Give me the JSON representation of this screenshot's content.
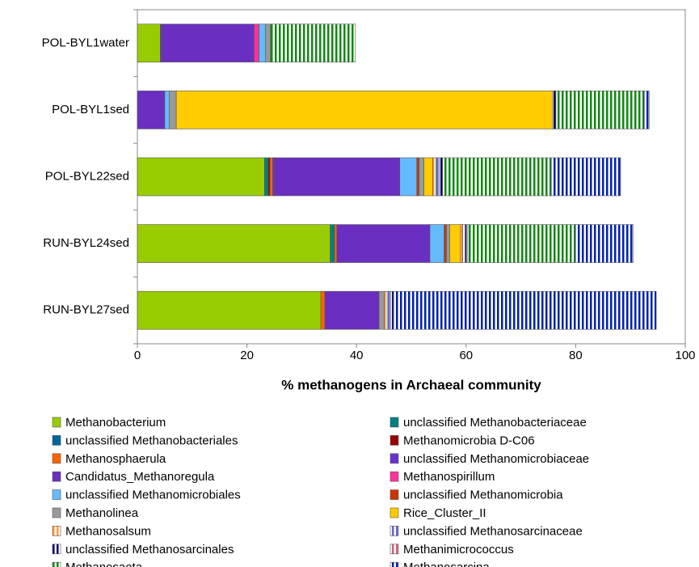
{
  "chart_data": {
    "type": "stacked-barh",
    "xlabel": "% methanogens in Archaeal community",
    "categories": [
      "POL-BYL1water",
      "POL-BYL1sed",
      "POL-BYL22sed",
      "RUN-BYL24sed",
      "RUN-BYL27sed"
    ],
    "xlim": [
      0,
      100
    ],
    "xticks": [
      0,
      20,
      40,
      60,
      80,
      100
    ],
    "series": [
      {
        "name": "Methanobacterium",
        "color": "#99cc00",
        "values": [
          4.2,
          0,
          23.2,
          35.2,
          33.5
        ]
      },
      {
        "name": "unclassified Methanobacteriaceae",
        "color": "#008080",
        "values": [
          0,
          0,
          0.7,
          0.8,
          0
        ]
      },
      {
        "name": "unclassified Methanobacteriales",
        "color": "#006699",
        "values": [
          0,
          0,
          0,
          0,
          0
        ]
      },
      {
        "name": "Methanomicrobia D-C06",
        "color": "#990000",
        "values": [
          0,
          0,
          0.3,
          0,
          0
        ]
      },
      {
        "name": "Methanosphaerula",
        "color": "#ff6600",
        "values": [
          0,
          0,
          0.5,
          0.4,
          0.7
        ]
      },
      {
        "name": "unclassified Methanomicrobiaceae",
        "color": "#6633cc",
        "values": [
          0.3,
          0,
          0.3,
          0,
          0
        ]
      },
      {
        "name": "Candidatus_Methanoregula",
        "color": "#6a2fc0",
        "values": [
          16.8,
          5.0,
          22.9,
          17.0,
          9.9
        ]
      },
      {
        "name": "Methanospirillum",
        "color": "#ff3399",
        "values": [
          0.9,
          0,
          0,
          0,
          0
        ]
      },
      {
        "name": "unclassified Methanomicrobiales",
        "color": "#66bbff",
        "values": [
          1.2,
          0.8,
          3.1,
          2.6,
          0
        ]
      },
      {
        "name": "unclassified Methanomicrobia",
        "color": "#cc3300",
        "values": [
          0,
          0,
          0.4,
          0.4,
          0
        ]
      },
      {
        "name": "Methanolinea",
        "color": "#999999",
        "values": [
          0.9,
          1.3,
          0.9,
          0.6,
          1.0
        ]
      },
      {
        "name": "Rice_Cluster_II",
        "color": "#ffcc00",
        "values": [
          0,
          68.7,
          1.6,
          1.9,
          0
        ]
      },
      {
        "name": "Methanosalsum",
        "color": "#ff9933",
        "pattern": "stripes",
        "values": [
          0,
          0,
          0.6,
          0.5,
          0.5
        ]
      },
      {
        "name": "unclassified Methanosarcinaceae",
        "color": "#6666cc",
        "pattern": "stripes",
        "values": [
          0,
          0,
          0.6,
          0.5,
          0.6
        ]
      },
      {
        "name": "unclassified Methanosarcinales",
        "color": "#000066",
        "pattern": "stripes",
        "values": [
          0,
          0.6,
          0.6,
          0.4,
          0.5
        ]
      },
      {
        "name": "Methanimicrococcus",
        "color": "#cc6677",
        "pattern": "stripes",
        "values": [
          0,
          0,
          0,
          0,
          0
        ]
      },
      {
        "name": "Methanosaeta",
        "color": "#118811",
        "pattern": "stripes",
        "values": [
          15.5,
          16.0,
          19.8,
          19.6,
          0
        ]
      },
      {
        "name": "Methanosarcina",
        "color": "#0022aa",
        "pattern": "stripes",
        "values": [
          0,
          1.0,
          12.7,
          10.6,
          48.0
        ]
      }
    ]
  }
}
